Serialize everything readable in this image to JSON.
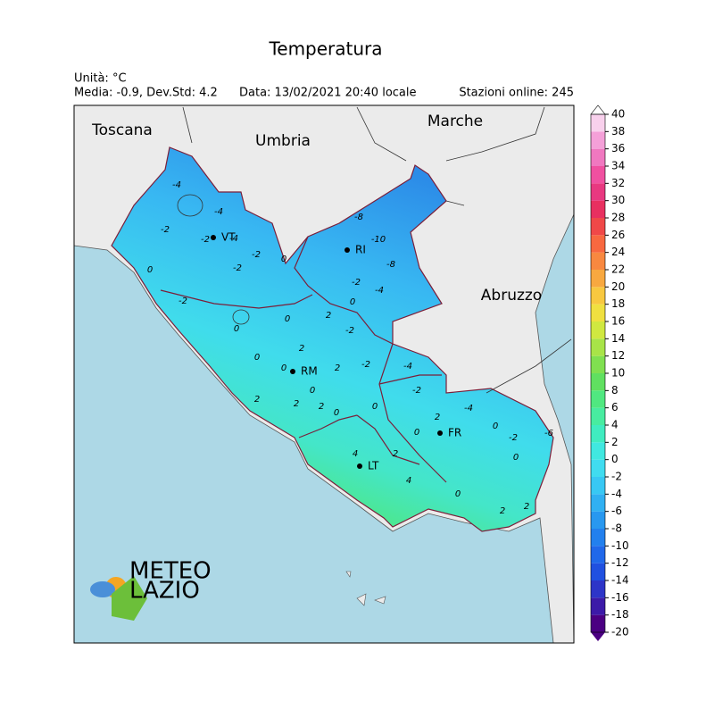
{
  "header": {
    "title": "Temperatura",
    "unit": "Unità: °C",
    "stats": "Media: -0.9, Dev.Std: 4.2",
    "date": "Data: 13/02/2021 20:40 locale",
    "stations": "Stazioni online: 245"
  },
  "regions": [
    "Toscana",
    "Umbria",
    "Marche",
    "Abruzzo"
  ],
  "cities": [
    "VT",
    "RI",
    "RM",
    "FR",
    "LT"
  ],
  "contour_labels": [
    -4,
    -4,
    -2,
    -2,
    -4,
    -2,
    -2,
    0,
    -2,
    0,
    -8,
    -10,
    -8,
    -2,
    -4,
    0,
    0,
    2,
    0,
    2,
    -2,
    2,
    -2,
    -4,
    0,
    0,
    -2,
    -4,
    0,
    2,
    0,
    2,
    2,
    0,
    2,
    0,
    0,
    -2,
    -6,
    0,
    4,
    2,
    4,
    2,
    2,
    0
  ],
  "colorbar": {
    "ticks": [
      -20,
      -18,
      -16,
      -14,
      -12,
      -10,
      -8,
      -6,
      -4,
      -2,
      0,
      2,
      4,
      6,
      8,
      10,
      12,
      14,
      16,
      18,
      20,
      22,
      24,
      26,
      28,
      30,
      32,
      34,
      36,
      38,
      40
    ],
    "colors": [
      "#4b0082",
      "#3c1aa8",
      "#2d35c8",
      "#2050e0",
      "#2068ea",
      "#2280ee",
      "#2898f0",
      "#30b0f2",
      "#38c8f4",
      "#40dcf0",
      "#40e8e0",
      "#40ecc0",
      "#48eca0",
      "#50e880",
      "#60e060",
      "#80e050",
      "#a8e448",
      "#d0e840",
      "#f0e040",
      "#f8c840",
      "#f8a840",
      "#f88840",
      "#f86840",
      "#f04848",
      "#e83060",
      "#e83880",
      "#f050a0",
      "#f078c0",
      "#f4a0d8",
      "#f8d0ec"
    ]
  },
  "logo": {
    "line1": "METEO",
    "line2": "LAZIO"
  }
}
